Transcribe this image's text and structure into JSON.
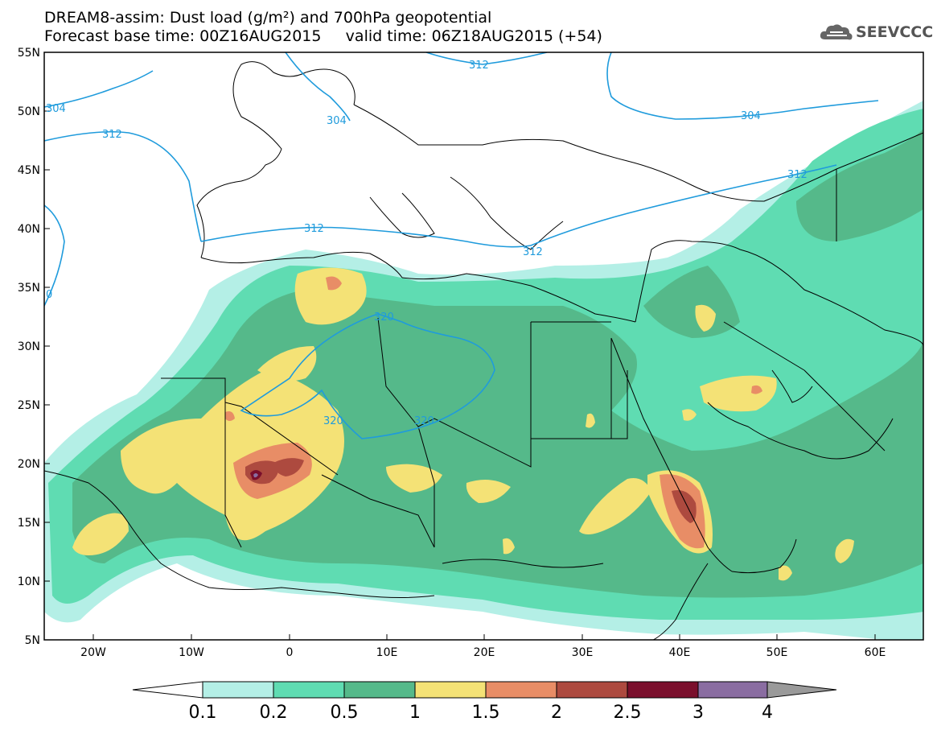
{
  "title": {
    "line1": "DREAM8-assim: Dust load (g/m²) and 700hPa geopotential",
    "line2": "Forecast base time: 00Z16AUG2015     valid time: 06Z18AUG2015 (+54)"
  },
  "logo": {
    "text": "SEEVCCC",
    "icon": "cloud-logo-icon"
  },
  "map": {
    "lat_labels": [
      "55N",
      "50N",
      "45N",
      "40N",
      "35N",
      "30N",
      "25N",
      "20N",
      "15N",
      "10N",
      "5N"
    ],
    "lon_labels": [
      "20W",
      "10W",
      "0",
      "10E",
      "20E",
      "30E",
      "40E",
      "50E",
      "60E"
    ],
    "contour_labels": [
      "312",
      "304",
      "312",
      "312",
      "312",
      "304",
      "312",
      "320",
      "320",
      "320",
      "304",
      "312",
      "312",
      "0"
    ],
    "colors": {
      "frame": "#000000",
      "contour": "#1f9bdc",
      "land_border": "#000000"
    }
  },
  "colorbar": {
    "levels": [
      "0.1",
      "0.2",
      "0.5",
      "1",
      "1.5",
      "2",
      "2.5",
      "3",
      "4"
    ],
    "colors": [
      "#b4efe6",
      "#5fdcb2",
      "#55b98a",
      "#f4e276",
      "#e88d66",
      "#ad4a3f",
      "#7a0f2c",
      "#8a6da1",
      "#9a9a9a"
    ]
  }
}
